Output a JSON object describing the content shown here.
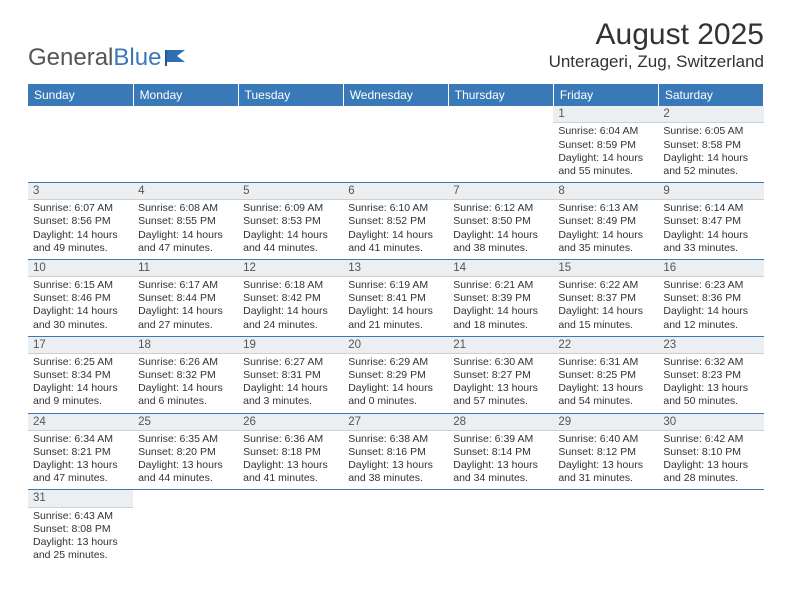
{
  "brand": {
    "part1": "General",
    "part2": "Blue"
  },
  "title": "August 2025",
  "location": "Unterageri, Zug, Switzerland",
  "colors": {
    "header_bg": "#3a79b7",
    "header_text": "#ffffff",
    "daynum_bg": "#eceff1",
    "cell_border": "#3a79b7",
    "text": "#333333",
    "logo_gray": "#555555",
    "logo_blue": "#3a79b7"
  },
  "weekdays": [
    "Sunday",
    "Monday",
    "Tuesday",
    "Wednesday",
    "Thursday",
    "Friday",
    "Saturday"
  ],
  "weeks": [
    [
      null,
      null,
      null,
      null,
      null,
      {
        "d": "1",
        "sr": "Sunrise: 6:04 AM",
        "ss": "Sunset: 8:59 PM",
        "dl": "Daylight: 14 hours and 55 minutes."
      },
      {
        "d": "2",
        "sr": "Sunrise: 6:05 AM",
        "ss": "Sunset: 8:58 PM",
        "dl": "Daylight: 14 hours and 52 minutes."
      }
    ],
    [
      {
        "d": "3",
        "sr": "Sunrise: 6:07 AM",
        "ss": "Sunset: 8:56 PM",
        "dl": "Daylight: 14 hours and 49 minutes."
      },
      {
        "d": "4",
        "sr": "Sunrise: 6:08 AM",
        "ss": "Sunset: 8:55 PM",
        "dl": "Daylight: 14 hours and 47 minutes."
      },
      {
        "d": "5",
        "sr": "Sunrise: 6:09 AM",
        "ss": "Sunset: 8:53 PM",
        "dl": "Daylight: 14 hours and 44 minutes."
      },
      {
        "d": "6",
        "sr": "Sunrise: 6:10 AM",
        "ss": "Sunset: 8:52 PM",
        "dl": "Daylight: 14 hours and 41 minutes."
      },
      {
        "d": "7",
        "sr": "Sunrise: 6:12 AM",
        "ss": "Sunset: 8:50 PM",
        "dl": "Daylight: 14 hours and 38 minutes."
      },
      {
        "d": "8",
        "sr": "Sunrise: 6:13 AM",
        "ss": "Sunset: 8:49 PM",
        "dl": "Daylight: 14 hours and 35 minutes."
      },
      {
        "d": "9",
        "sr": "Sunrise: 6:14 AM",
        "ss": "Sunset: 8:47 PM",
        "dl": "Daylight: 14 hours and 33 minutes."
      }
    ],
    [
      {
        "d": "10",
        "sr": "Sunrise: 6:15 AM",
        "ss": "Sunset: 8:46 PM",
        "dl": "Daylight: 14 hours and 30 minutes."
      },
      {
        "d": "11",
        "sr": "Sunrise: 6:17 AM",
        "ss": "Sunset: 8:44 PM",
        "dl": "Daylight: 14 hours and 27 minutes."
      },
      {
        "d": "12",
        "sr": "Sunrise: 6:18 AM",
        "ss": "Sunset: 8:42 PM",
        "dl": "Daylight: 14 hours and 24 minutes."
      },
      {
        "d": "13",
        "sr": "Sunrise: 6:19 AM",
        "ss": "Sunset: 8:41 PM",
        "dl": "Daylight: 14 hours and 21 minutes."
      },
      {
        "d": "14",
        "sr": "Sunrise: 6:21 AM",
        "ss": "Sunset: 8:39 PM",
        "dl": "Daylight: 14 hours and 18 minutes."
      },
      {
        "d": "15",
        "sr": "Sunrise: 6:22 AM",
        "ss": "Sunset: 8:37 PM",
        "dl": "Daylight: 14 hours and 15 minutes."
      },
      {
        "d": "16",
        "sr": "Sunrise: 6:23 AM",
        "ss": "Sunset: 8:36 PM",
        "dl": "Daylight: 14 hours and 12 minutes."
      }
    ],
    [
      {
        "d": "17",
        "sr": "Sunrise: 6:25 AM",
        "ss": "Sunset: 8:34 PM",
        "dl": "Daylight: 14 hours and 9 minutes."
      },
      {
        "d": "18",
        "sr": "Sunrise: 6:26 AM",
        "ss": "Sunset: 8:32 PM",
        "dl": "Daylight: 14 hours and 6 minutes."
      },
      {
        "d": "19",
        "sr": "Sunrise: 6:27 AM",
        "ss": "Sunset: 8:31 PM",
        "dl": "Daylight: 14 hours and 3 minutes."
      },
      {
        "d": "20",
        "sr": "Sunrise: 6:29 AM",
        "ss": "Sunset: 8:29 PM",
        "dl": "Daylight: 14 hours and 0 minutes."
      },
      {
        "d": "21",
        "sr": "Sunrise: 6:30 AM",
        "ss": "Sunset: 8:27 PM",
        "dl": "Daylight: 13 hours and 57 minutes."
      },
      {
        "d": "22",
        "sr": "Sunrise: 6:31 AM",
        "ss": "Sunset: 8:25 PM",
        "dl": "Daylight: 13 hours and 54 minutes."
      },
      {
        "d": "23",
        "sr": "Sunrise: 6:32 AM",
        "ss": "Sunset: 8:23 PM",
        "dl": "Daylight: 13 hours and 50 minutes."
      }
    ],
    [
      {
        "d": "24",
        "sr": "Sunrise: 6:34 AM",
        "ss": "Sunset: 8:21 PM",
        "dl": "Daylight: 13 hours and 47 minutes."
      },
      {
        "d": "25",
        "sr": "Sunrise: 6:35 AM",
        "ss": "Sunset: 8:20 PM",
        "dl": "Daylight: 13 hours and 44 minutes."
      },
      {
        "d": "26",
        "sr": "Sunrise: 6:36 AM",
        "ss": "Sunset: 8:18 PM",
        "dl": "Daylight: 13 hours and 41 minutes."
      },
      {
        "d": "27",
        "sr": "Sunrise: 6:38 AM",
        "ss": "Sunset: 8:16 PM",
        "dl": "Daylight: 13 hours and 38 minutes."
      },
      {
        "d": "28",
        "sr": "Sunrise: 6:39 AM",
        "ss": "Sunset: 8:14 PM",
        "dl": "Daylight: 13 hours and 34 minutes."
      },
      {
        "d": "29",
        "sr": "Sunrise: 6:40 AM",
        "ss": "Sunset: 8:12 PM",
        "dl": "Daylight: 13 hours and 31 minutes."
      },
      {
        "d": "30",
        "sr": "Sunrise: 6:42 AM",
        "ss": "Sunset: 8:10 PM",
        "dl": "Daylight: 13 hours and 28 minutes."
      }
    ],
    [
      {
        "d": "31",
        "sr": "Sunrise: 6:43 AM",
        "ss": "Sunset: 8:08 PM",
        "dl": "Daylight: 13 hours and 25 minutes."
      },
      null,
      null,
      null,
      null,
      null,
      null
    ]
  ]
}
